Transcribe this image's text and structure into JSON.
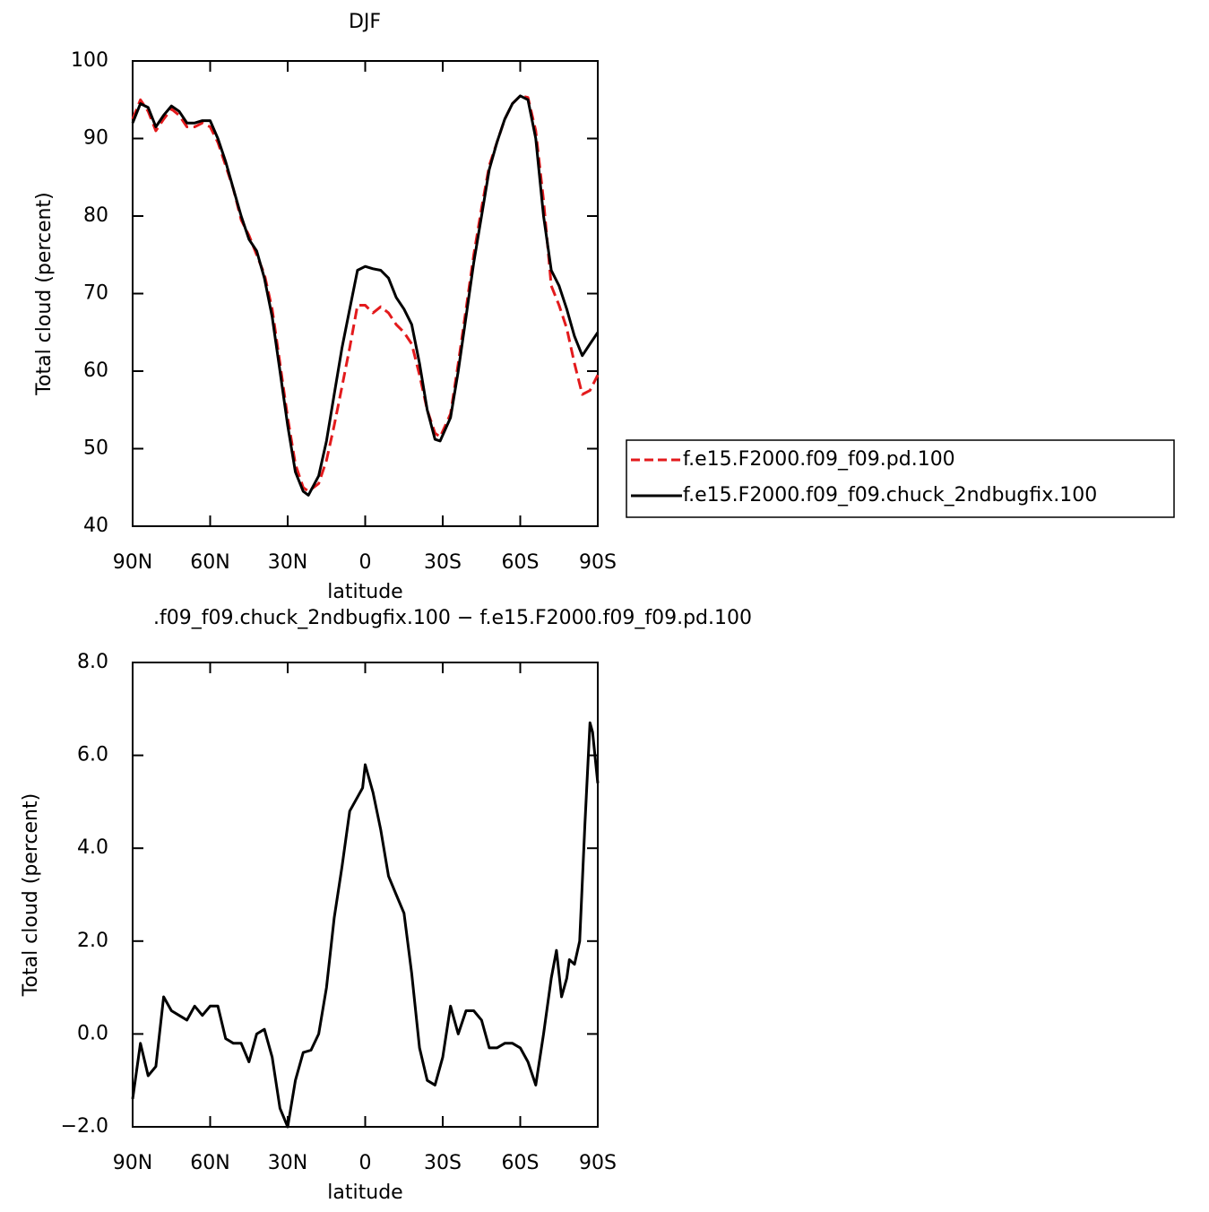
{
  "chart_data": [
    {
      "type": "line",
      "title": "DJF",
      "x_label": "latitude",
      "y_label": "Total cloud (percent)",
      "x": [
        90,
        87,
        84,
        81,
        78,
        75,
        72,
        69,
        66,
        63,
        60,
        57,
        54,
        51,
        48,
        45,
        42,
        39,
        36,
        33,
        30,
        27,
        24,
        22,
        18,
        15,
        12,
        9,
        6,
        3,
        0,
        -3,
        -6,
        -9,
        -12,
        -15,
        -18,
        -21,
        -24,
        -27,
        -29,
        -33,
        -36,
        -39,
        -42,
        -45,
        -48,
        -51,
        -54,
        -57,
        -60,
        -63,
        -66,
        -69,
        -72,
        -75,
        -78,
        -81,
        -84,
        -87,
        -90
      ],
      "series": [
        {
          "name": "f.e15.F2000.f09_f09.pd.100",
          "color": "#e31a1c",
          "line_style": "dashed",
          "values": [
            92.5,
            95,
            93.5,
            91,
            92.5,
            93.8,
            93,
            91.5,
            91.5,
            92,
            91.5,
            89.5,
            86.5,
            83.5,
            79.5,
            77.5,
            75,
            72.5,
            68,
            61,
            54,
            48,
            45,
            44.5,
            45.5,
            48.5,
            53,
            58,
            63,
            68.5,
            68.5,
            67.5,
            68.3,
            67.5,
            66,
            65,
            63.5,
            59.5,
            55,
            52,
            51.5,
            54.5,
            61,
            68,
            75,
            81,
            86.5,
            89.5,
            92.5,
            94.5,
            95.5,
            95.3,
            91,
            82,
            71,
            68.5,
            65.5,
            61,
            57,
            57.5,
            59.5
          ]
        },
        {
          "name": "f.e15.F2000.f09_f09.chuck_2ndbugfix.100",
          "color": "#000000",
          "line_style": "solid",
          "values": [
            92,
            94.5,
            94,
            91.5,
            93,
            94.2,
            93.5,
            92,
            92,
            92.3,
            92.3,
            90,
            87,
            83.5,
            80,
            77,
            75.5,
            72,
            67,
            60,
            53,
            47,
            44.5,
            44,
            46.5,
            51,
            57,
            63,
            68,
            73,
            73.5,
            73.2,
            73,
            72,
            69.5,
            68,
            66,
            61,
            55,
            51.2,
            51,
            54,
            60,
            67,
            74,
            80,
            86,
            89.5,
            92.5,
            94.5,
            95.5,
            95,
            90,
            80,
            73,
            71,
            68,
            64.5,
            62,
            63.5,
            65
          ]
        }
      ],
      "xlim": [
        90,
        -90
      ],
      "xticks": [
        {
          "value": 90,
          "label": "90N"
        },
        {
          "value": 60,
          "label": "60N"
        },
        {
          "value": 30,
          "label": "30N"
        },
        0,
        {
          "value": -30,
          "label": "30S"
        },
        {
          "value": -60,
          "label": "60S"
        },
        {
          "value": -90,
          "label": "90S"
        }
      ],
      "ylim": [
        40,
        100
      ],
      "yticks": [
        40,
        50,
        60,
        70,
        80,
        90,
        100
      ],
      "legend_position": "right"
    },
    {
      "type": "line",
      "title": ".f09_f09.chuck_2ndbugfix.100 − f.e15.F2000.f09_f09.pd.100",
      "x_label": "latitude",
      "y_label": "Total cloud (percent)",
      "x": [
        90,
        87,
        84,
        81,
        78,
        75,
        72,
        69,
        66,
        63,
        60,
        57,
        54,
        51,
        48,
        45,
        42,
        39,
        36,
        33,
        30,
        27,
        24,
        21,
        18,
        15,
        12,
        9,
        6,
        3,
        1,
        0,
        -3,
        -6,
        -9,
        -12,
        -15,
        -18,
        -21,
        -24,
        -27,
        -30,
        -33,
        -36,
        -39,
        -42,
        -45,
        -48,
        -51,
        -54,
        -57,
        -60,
        -63,
        -66,
        -69,
        -72,
        -74,
        -76,
        -78,
        -79,
        -81,
        -83,
        -85,
        -87,
        -88,
        -90
      ],
      "series": [
        {
          "color": "#000000",
          "line_style": "solid",
          "values": [
            -1.4,
            -0.2,
            -0.9,
            -0.7,
            0.8,
            0.5,
            0.4,
            0.3,
            0.6,
            0.4,
            0.6,
            0.6,
            -0.1,
            -0.2,
            -0.2,
            -0.6,
            0.0,
            0.1,
            -0.5,
            -1.6,
            -2.0,
            -1.0,
            -0.4,
            -0.35,
            0.0,
            1.0,
            2.5,
            3.6,
            4.8,
            5.1,
            5.3,
            5.8,
            5.2,
            4.4,
            3.4,
            3.0,
            2.6,
            1.3,
            -0.3,
            -1.0,
            -1.1,
            -0.5,
            0.6,
            0.0,
            0.5,
            0.5,
            0.3,
            -0.3,
            -0.3,
            -0.2,
            -0.2,
            -0.3,
            -0.6,
            -1.1,
            0.0,
            1.2,
            1.8,
            0.8,
            1.2,
            1.6,
            1.5,
            2.0,
            4.5,
            6.7,
            6.5,
            5.4
          ]
        }
      ],
      "xlim": [
        90,
        -90
      ],
      "xticks": [
        {
          "value": 90,
          "label": "90N"
        },
        {
          "value": 60,
          "label": "60N"
        },
        {
          "value": 30,
          "label": "30N"
        },
        0,
        {
          "value": -30,
          "label": "30S"
        },
        {
          "value": -60,
          "label": "60S"
        },
        {
          "value": -90,
          "label": "90S"
        }
      ],
      "ylim": [
        -2,
        8
      ],
      "yticks": [
        {
          "value": -2,
          "label": "−2.0"
        },
        {
          "value": 0,
          "label": "0.0"
        },
        {
          "value": 2,
          "label": "2.0"
        },
        {
          "value": 4,
          "label": "4.0"
        },
        {
          "value": 6,
          "label": "6.0"
        },
        {
          "value": 8,
          "label": "8.0"
        }
      ]
    }
  ]
}
